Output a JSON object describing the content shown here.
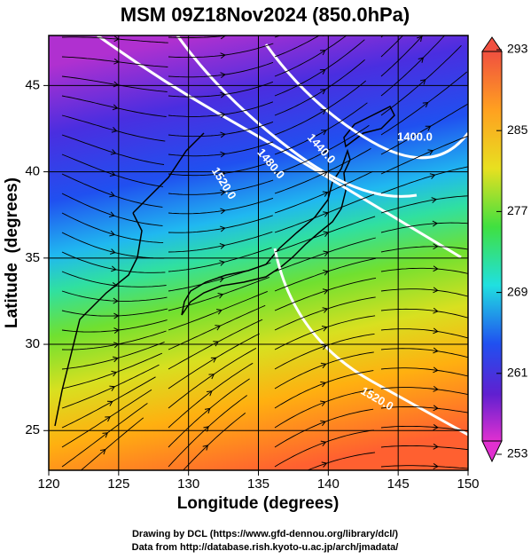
{
  "title": "MSM 09Z18Nov2024 (850.0hPa)",
  "map": {
    "xlabel": "Longitude (degrees)",
    "ylabel": "Latitude  (degrees)",
    "xlim": [
      120,
      150
    ],
    "ylim": [
      22.7,
      47.9
    ],
    "xticks": [
      120,
      125,
      130,
      135,
      140,
      145,
      150
    ],
    "yticks": [
      25,
      30,
      35,
      40,
      45
    ],
    "contour_labels": [
      "1520.0",
      "1480.0",
      "1440.0",
      "1400.0",
      "1520.0"
    ]
  },
  "colorbar": {
    "lim": [
      253,
      293
    ],
    "ticks": [
      253,
      261,
      269,
      277,
      285,
      293
    ]
  },
  "credits": [
    "Drawing by DCL (https://www.gfd-dennou.org/library/dcl/)",
    "Data from http://database.rish.kyoto-u.ac.jp/arch/jmadata/"
  ]
}
